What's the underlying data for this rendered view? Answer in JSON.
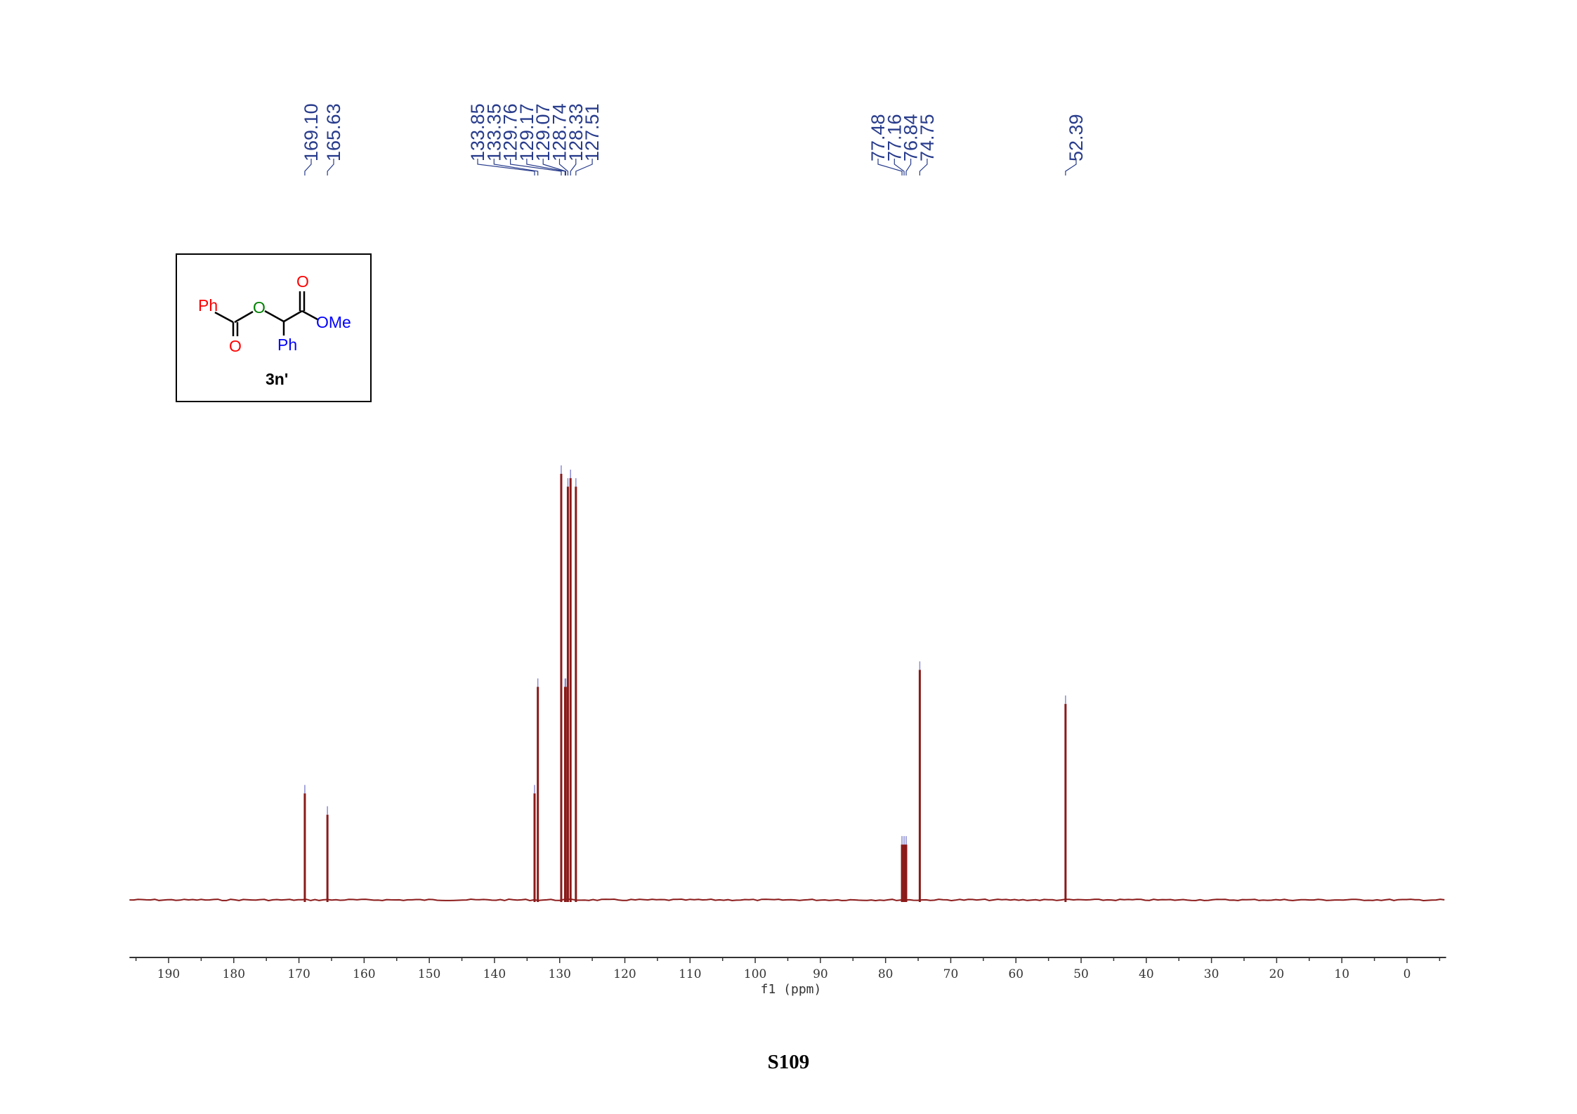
{
  "chart_data": {
    "type": "line",
    "xlabel": "f1 (ppm)",
    "xlim": [
      196,
      -6
    ],
    "reversed_x": true,
    "x_ticks": [
      190,
      180,
      170,
      160,
      150,
      140,
      130,
      120,
      110,
      100,
      90,
      80,
      70,
      60,
      50,
      40,
      30,
      20,
      10,
      0
    ],
    "peak_labels": [
      "169.10",
      "165.63",
      "133.85",
      "133.35",
      "129.76",
      "129.17",
      "129.07",
      "128.74",
      "128.33",
      "127.51",
      "77.48",
      "77.16",
      "76.84",
      "74.75",
      "52.39"
    ],
    "peaks": [
      {
        "ppm": 169.1,
        "intensity": 0.25
      },
      {
        "ppm": 165.63,
        "intensity": 0.2
      },
      {
        "ppm": 133.85,
        "intensity": 0.25
      },
      {
        "ppm": 133.35,
        "intensity": 0.5
      },
      {
        "ppm": 129.76,
        "intensity": 1.0
      },
      {
        "ppm": 129.17,
        "intensity": 0.5
      },
      {
        "ppm": 129.07,
        "intensity": 0.5
      },
      {
        "ppm": 128.74,
        "intensity": 0.97
      },
      {
        "ppm": 128.33,
        "intensity": 0.99
      },
      {
        "ppm": 127.51,
        "intensity": 0.97
      },
      {
        "ppm": 77.48,
        "intensity": 0.13
      },
      {
        "ppm": 77.16,
        "intensity": 0.13
      },
      {
        "ppm": 76.84,
        "intensity": 0.13
      },
      {
        "ppm": 74.75,
        "intensity": 0.54
      },
      {
        "ppm": 52.39,
        "intensity": 0.46
      }
    ],
    "label_groups": [
      [
        0
      ],
      [
        1
      ],
      [
        2,
        3,
        4,
        5,
        6,
        7,
        8,
        9
      ],
      [
        10,
        11,
        12,
        13
      ],
      [
        14
      ]
    ],
    "colors": {
      "spectrum": "#8b1a1a",
      "labels": "#283c8c",
      "peak_marker": "#8a8ad0"
    }
  },
  "structure": {
    "left_group": "Ph",
    "ether_oxygen": "O",
    "carbonyl_oxygen_top": "O",
    "ester_group": "OMe",
    "carbonyl_oxygen_bottom": "O",
    "phenyl_substituent": "Ph",
    "compound_label": "3n'",
    "colors": {
      "red": "#ff0000",
      "green": "#008000",
      "blue": "#0000ff",
      "black": "#000000"
    }
  },
  "page_number": "S109"
}
